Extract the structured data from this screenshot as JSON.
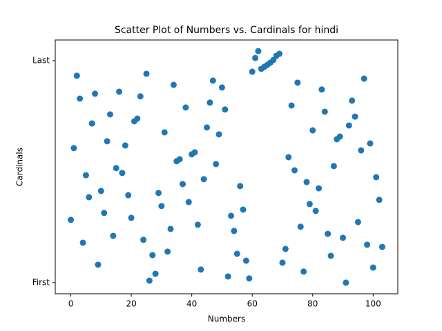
{
  "chart_data": {
    "type": "scatter",
    "title": "Scatter Plot of Numbers vs. Cardinals for hindi",
    "x_label": "Numbers",
    "y_label": "Cardinals",
    "color": "#1f77b4",
    "xlim": [
      -5.15,
      108.15
    ],
    "ylim": [
      -5,
      109.3
    ],
    "xticks": [
      0,
      20,
      40,
      60,
      80,
      100
    ],
    "yticks": [
      {
        "value": 0,
        "label": "First"
      },
      {
        "value": 100,
        "label": "Last"
      }
    ],
    "x": [
      0,
      1,
      2,
      3,
      4,
      5,
      6,
      7,
      8,
      9,
      10,
      11,
      12,
      13,
      14,
      15,
      16,
      17,
      18,
      19,
      20,
      21,
      22,
      23,
      24,
      25,
      26,
      27,
      28,
      29,
      30,
      31,
      32,
      33,
      34,
      35,
      36,
      37,
      38,
      39,
      40,
      41,
      42,
      43,
      44,
      45,
      46,
      47,
      48,
      49,
      50,
      51,
      52,
      53,
      54,
      55,
      56,
      57,
      58,
      59,
      60,
      61,
      62,
      63,
      64,
      65,
      66,
      67,
      68,
      69,
      70,
      71,
      72,
      73,
      74,
      75,
      76,
      77,
      78,
      79,
      80,
      81,
      82,
      83,
      84,
      85,
      86,
      87,
      88,
      89,
      90,
      91,
      92,
      93,
      94,
      95,
      96,
      97,
      98,
      99,
      100,
      101,
      102,
      103
    ],
    "values": [
      28.3,
      60.6,
      93.2,
      82.9,
      18.0,
      48.4,
      38.5,
      71.7,
      85.1,
      8.1,
      41.3,
      31.4,
      63.7,
      75.8,
      21.1,
      51.6,
      86.0,
      49.4,
      61.8,
      39.4,
      29.2,
      72.7,
      73.9,
      83.9,
      19.3,
      94.1,
      0.9,
      12.4,
      4.0,
      40.4,
      34.5,
      67.7,
      14.0,
      24.2,
      89.1,
      54.7,
      55.6,
      44.4,
      78.9,
      36.3,
      57.8,
      58.7,
      26.1,
      5.9,
      46.6,
      69.9,
      81.1,
      91.0,
      53.4,
      66.8,
      87.9,
      78.0,
      2.8,
      30.1,
      23.3,
      13.0,
      43.5,
      32.9,
      9.9,
      1.9,
      95.0,
      101.2,
      104.3,
      96.3,
      97.2,
      98.1,
      99.1,
      100.3,
      102.2,
      103.1,
      9.0,
      15.2,
      56.5,
      79.8,
      50.6,
      90.1,
      25.2,
      5.0,
      45.3,
      35.4,
      68.6,
      32.3,
      42.5,
      87.0,
      77.0,
      22.0,
      12.1,
      52.5,
      64.6,
      65.8,
      20.2,
      0,
      70.8,
      82.0,
      74.8,
      27.3,
      59.6,
      91.9,
      17.1,
      62.7,
      6.8,
      47.5,
      37.3,
      16.1
    ]
  }
}
